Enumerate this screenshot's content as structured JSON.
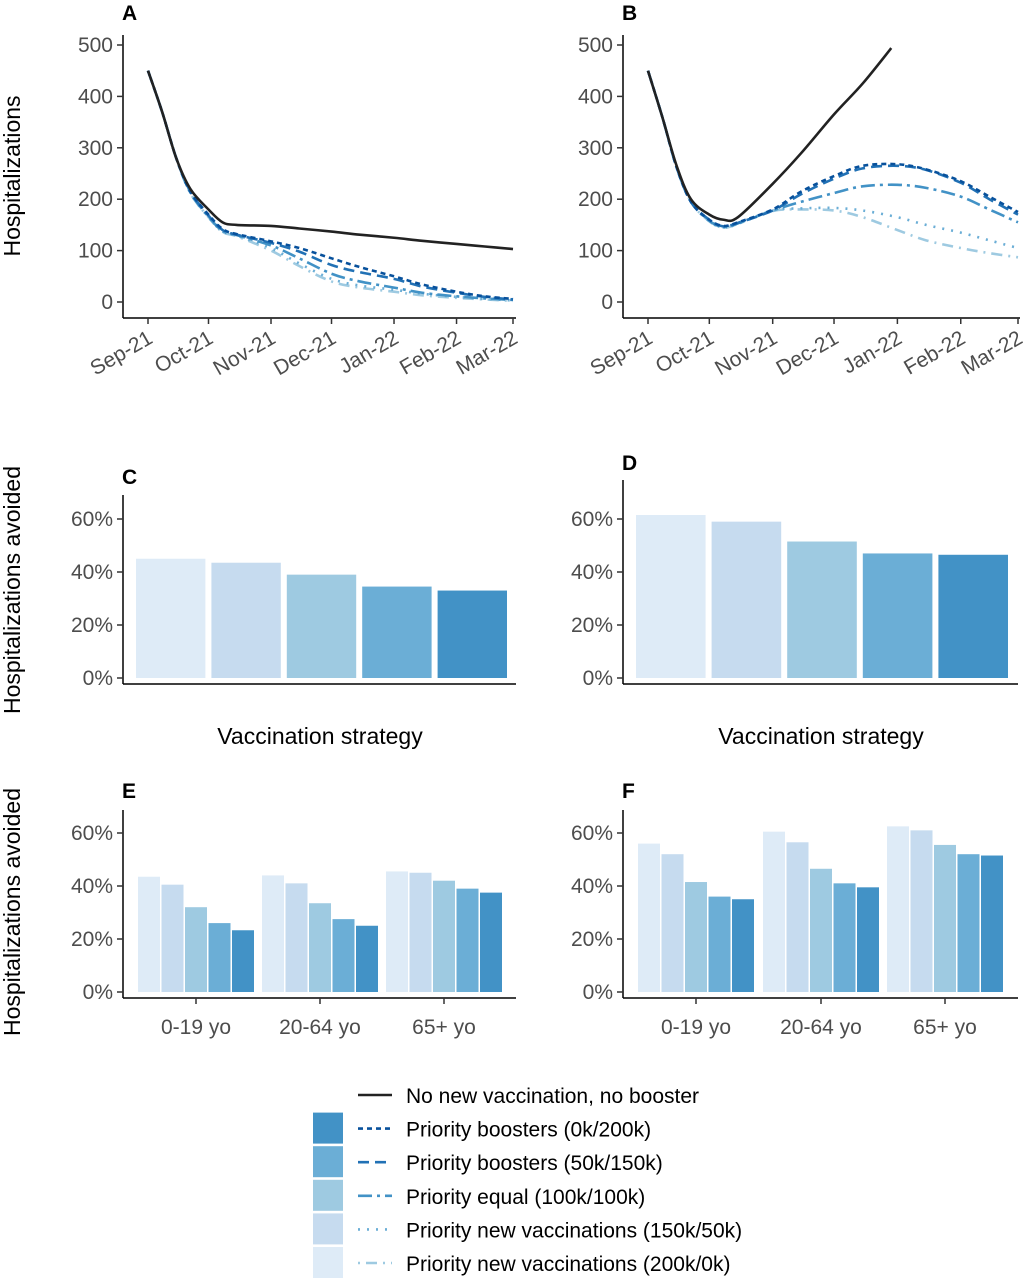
{
  "legend": {
    "items": [
      {
        "label": "No new vaccination, no booster",
        "line_color": "#222222",
        "dash": "solid",
        "fill": null
      },
      {
        "label": "Priority boosters (0k/200k)",
        "line_color": "#08519c",
        "dash": "dotted-dash",
        "fill": "#4292c6"
      },
      {
        "label": "Priority boosters (50k/150k)",
        "line_color": "#2171b5",
        "dash": "dashed",
        "fill": "#6baed6"
      },
      {
        "label": "Priority equal (100k/100k)",
        "line_color": "#4292c6",
        "dash": "longdash-dot",
        "fill": "#9ecae1"
      },
      {
        "label": "Priority new vaccinations (150k/50k)",
        "line_color": "#6baed6",
        "dash": "dotted",
        "fill": "#c6dbef"
      },
      {
        "label": "Priority new vaccinations (200k/0k)",
        "line_color": "#9ecae1",
        "dash": "dot-dash",
        "fill": "#deebf7"
      }
    ]
  },
  "chart_data": [
    {
      "panel": "A",
      "type": "line",
      "ylabel": "Hospitalizations",
      "xlabel": "",
      "ylim": [
        0,
        500
      ],
      "yticks": [
        "0",
        "100",
        "200",
        "300",
        "400",
        "500"
      ],
      "xticks": [
        "Sep-21",
        "Oct-21",
        "Nov-21",
        "Dec-21",
        "Jan-22",
        "Feb-22",
        "Mar-22"
      ],
      "xtick_dates": [
        "2021-09-01",
        "2021-10-01",
        "2021-11-01",
        "2021-12-01",
        "2022-01-01",
        "2022-02-01",
        "2022-03-01"
      ],
      "grid": false,
      "series": [
        {
          "name": "No new vaccination, no booster",
          "x": [
            "2021-09-01",
            "2021-09-08",
            "2021-09-15",
            "2021-09-22",
            "2021-10-01",
            "2021-10-08",
            "2021-10-15",
            "2021-11-01",
            "2021-11-15",
            "2021-12-01",
            "2021-12-15",
            "2022-01-01",
            "2022-01-15",
            "2022-02-01",
            "2022-02-15",
            "2022-03-01"
          ],
          "values": [
            450,
            370,
            280,
            220,
            180,
            155,
            150,
            148,
            143,
            137,
            131,
            125,
            119,
            113,
            108,
            103
          ]
        },
        {
          "name": "Priority boosters (0k/200k)",
          "x": [
            "2021-09-01",
            "2021-09-08",
            "2021-09-15",
            "2021-09-22",
            "2021-10-01",
            "2021-10-08",
            "2021-10-15",
            "2021-11-01",
            "2021-11-15",
            "2021-12-01",
            "2021-12-15",
            "2022-01-01",
            "2022-01-15",
            "2022-02-01",
            "2022-02-15",
            "2022-03-01"
          ],
          "values": [
            450,
            370,
            280,
            215,
            170,
            142,
            132,
            118,
            105,
            85,
            68,
            50,
            34,
            20,
            11,
            6
          ]
        },
        {
          "name": "Priority boosters (50k/150k)",
          "x": [
            "2021-09-01",
            "2021-09-08",
            "2021-09-15",
            "2021-09-22",
            "2021-10-01",
            "2021-10-08",
            "2021-10-15",
            "2021-11-01",
            "2021-11-15",
            "2021-12-01",
            "2021-12-15",
            "2022-01-01",
            "2022-01-15",
            "2022-02-01",
            "2022-02-15",
            "2022-03-01"
          ],
          "values": [
            450,
            370,
            280,
            215,
            168,
            140,
            131,
            115,
            98,
            72,
            58,
            45,
            30,
            18,
            10,
            5
          ]
        },
        {
          "name": "Priority equal (100k/100k)",
          "x": [
            "2021-09-01",
            "2021-09-08",
            "2021-09-15",
            "2021-09-22",
            "2021-10-01",
            "2021-10-08",
            "2021-10-15",
            "2021-11-01",
            "2021-11-15",
            "2021-12-01",
            "2021-12-15",
            "2022-01-01",
            "2022-01-15",
            "2022-02-01",
            "2022-02-15",
            "2022-03-01"
          ],
          "values": [
            450,
            370,
            280,
            213,
            166,
            138,
            130,
            110,
            85,
            55,
            40,
            28,
            18,
            11,
            7,
            4
          ]
        },
        {
          "name": "Priority new vaccinations (150k/50k)",
          "x": [
            "2021-09-01",
            "2021-09-08",
            "2021-09-15",
            "2021-09-22",
            "2021-10-01",
            "2021-10-08",
            "2021-10-15",
            "2021-11-01",
            "2021-11-15",
            "2021-12-01",
            "2021-12-15",
            "2022-01-01",
            "2022-01-15",
            "2022-02-01",
            "2022-02-15",
            "2022-03-01"
          ],
          "values": [
            450,
            370,
            280,
            212,
            165,
            137,
            129,
            105,
            75,
            45,
            32,
            24,
            16,
            10,
            6,
            3
          ]
        },
        {
          "name": "Priority new vaccinations (200k/0k)",
          "x": [
            "2021-09-01",
            "2021-09-08",
            "2021-09-15",
            "2021-09-22",
            "2021-10-01",
            "2021-10-08",
            "2021-10-15",
            "2021-11-01",
            "2021-11-15",
            "2021-12-01",
            "2021-12-15",
            "2022-01-01",
            "2022-01-15",
            "2022-02-01",
            "2022-02-15",
            "2022-03-01"
          ],
          "values": [
            450,
            370,
            280,
            212,
            165,
            136,
            128,
            100,
            70,
            40,
            28,
            20,
            13,
            8,
            5,
            2
          ]
        }
      ]
    },
    {
      "panel": "B",
      "type": "line",
      "ylabel": "",
      "xlabel": "",
      "ylim": [
        0,
        500
      ],
      "yticks": [
        "0",
        "100",
        "200",
        "300",
        "400",
        "500"
      ],
      "xticks": [
        "Sep-21",
        "Oct-21",
        "Nov-21",
        "Dec-21",
        "Jan-22",
        "Feb-22",
        "Mar-22"
      ],
      "xtick_dates": [
        "2021-09-01",
        "2021-10-01",
        "2021-11-01",
        "2021-12-01",
        "2022-01-01",
        "2022-02-01",
        "2022-03-01"
      ],
      "grid": false,
      "series": [
        {
          "name": "No new vaccination, no booster",
          "x": [
            "2021-09-01",
            "2021-09-08",
            "2021-09-15",
            "2021-09-22",
            "2021-10-01",
            "2021-10-08",
            "2021-10-15",
            "2021-11-01",
            "2021-11-15",
            "2021-12-01",
            "2021-12-15",
            "2021-12-29"
          ],
          "values": [
            450,
            360,
            265,
            200,
            170,
            160,
            165,
            230,
            290,
            365,
            425,
            494
          ]
        },
        {
          "name": "Priority boosters (0k/200k)",
          "x": [
            "2021-09-01",
            "2021-09-08",
            "2021-09-15",
            "2021-09-22",
            "2021-10-01",
            "2021-10-08",
            "2021-10-15",
            "2021-11-01",
            "2021-11-15",
            "2021-12-01",
            "2021-12-15",
            "2022-01-01",
            "2022-01-15",
            "2022-02-01",
            "2022-02-15",
            "2022-03-01"
          ],
          "values": [
            450,
            360,
            262,
            195,
            160,
            148,
            155,
            180,
            215,
            245,
            265,
            268,
            258,
            235,
            205,
            175
          ]
        },
        {
          "name": "Priority boosters (50k/150k)",
          "x": [
            "2021-09-01",
            "2021-09-08",
            "2021-09-15",
            "2021-09-22",
            "2021-10-01",
            "2021-10-08",
            "2021-10-15",
            "2021-11-01",
            "2021-11-15",
            "2021-12-01",
            "2021-12-15",
            "2022-01-01",
            "2022-01-15",
            "2022-02-01",
            "2022-02-15",
            "2022-03-01"
          ],
          "values": [
            450,
            360,
            262,
            195,
            160,
            147,
            154,
            178,
            210,
            240,
            260,
            265,
            257,
            232,
            200,
            170
          ]
        },
        {
          "name": "Priority equal (100k/100k)",
          "x": [
            "2021-09-01",
            "2021-09-08",
            "2021-09-15",
            "2021-09-22",
            "2021-10-01",
            "2021-10-08",
            "2021-10-15",
            "2021-11-01",
            "2021-11-15",
            "2021-12-01",
            "2021-12-15",
            "2022-01-01",
            "2022-01-15",
            "2022-02-01",
            "2022-02-15",
            "2022-03-01"
          ],
          "values": [
            450,
            360,
            262,
            195,
            158,
            146,
            153,
            178,
            195,
            212,
            225,
            228,
            222,
            205,
            180,
            155
          ]
        },
        {
          "name": "Priority new vaccinations (150k/50k)",
          "x": [
            "2021-09-01",
            "2021-09-08",
            "2021-09-15",
            "2021-09-22",
            "2021-10-01",
            "2021-10-08",
            "2021-10-15",
            "2021-11-01",
            "2021-11-15",
            "2021-12-01",
            "2021-12-15",
            "2022-01-01",
            "2022-01-15",
            "2022-02-01",
            "2022-02-15",
            "2022-03-01"
          ],
          "values": [
            450,
            360,
            262,
            195,
            157,
            145,
            152,
            178,
            182,
            183,
            178,
            165,
            150,
            135,
            120,
            105
          ]
        },
        {
          "name": "Priority new vaccinations (200k/0k)",
          "x": [
            "2021-09-01",
            "2021-09-08",
            "2021-09-15",
            "2021-09-22",
            "2021-10-01",
            "2021-10-08",
            "2021-10-15",
            "2021-11-01",
            "2021-11-15",
            "2021-12-01",
            "2021-12-15",
            "2022-01-01",
            "2022-01-15",
            "2022-02-01",
            "2022-02-15",
            "2022-03-01"
          ],
          "values": [
            450,
            360,
            262,
            195,
            157,
            145,
            152,
            177,
            180,
            178,
            165,
            140,
            120,
            105,
            95,
            87
          ]
        }
      ]
    },
    {
      "panel": "C",
      "type": "bar",
      "ylabel": "Hospitalizations avoided",
      "xlabel": "Vaccination strategy",
      "ylim": [
        0,
        65
      ],
      "yticks": [
        "0%",
        "20%",
        "40%",
        "60%"
      ],
      "ytick_values": [
        0,
        20,
        40,
        60
      ],
      "categories": [
        "Priority new vaccinations (200k/0k)",
        "Priority new vaccinations (150k/50k)",
        "Priority equal (100k/100k)",
        "Priority boosters (50k/150k)",
        "Priority boosters (0k/200k)"
      ],
      "values": [
        45,
        43.5,
        39,
        34.5,
        33
      ]
    },
    {
      "panel": "D",
      "type": "bar",
      "ylabel": "",
      "xlabel": "Vaccination strategy",
      "ylim": [
        0,
        65
      ],
      "yticks": [
        "0%",
        "20%",
        "40%",
        "60%"
      ],
      "ytick_values": [
        0,
        20,
        40,
        60
      ],
      "categories": [
        "Priority new vaccinations (200k/0k)",
        "Priority new vaccinations (150k/50k)",
        "Priority equal (100k/100k)",
        "Priority boosters (50k/150k)",
        "Priority boosters (0k/200k)"
      ],
      "values": [
        61.5,
        59,
        51.5,
        47,
        46.5
      ]
    },
    {
      "panel": "E",
      "type": "bar",
      "ylabel": "Hospitalizations avoided",
      "xlabel": "",
      "ylim": [
        0,
        65
      ],
      "yticks": [
        "0%",
        "20%",
        "40%",
        "60%"
      ],
      "ytick_values": [
        0,
        20,
        40,
        60
      ],
      "categories": [
        "0-19 yo",
        "20-64 yo",
        "65+ yo"
      ],
      "series": [
        {
          "name": "Priority new vaccinations (200k/0k)",
          "values": [
            43.5,
            44,
            45.5
          ]
        },
        {
          "name": "Priority new vaccinations (150k/50k)",
          "values": [
            40.5,
            41,
            45
          ]
        },
        {
          "name": "Priority equal (100k/100k)",
          "values": [
            32,
            33.5,
            42
          ]
        },
        {
          "name": "Priority boosters (50k/150k)",
          "values": [
            26,
            27.5,
            39
          ]
        },
        {
          "name": "Priority boosters (0k/200k)",
          "values": [
            23.3,
            25,
            37.5
          ]
        }
      ]
    },
    {
      "panel": "F",
      "type": "bar",
      "ylabel": "",
      "xlabel": "",
      "ylim": [
        0,
        65
      ],
      "yticks": [
        "0%",
        "20%",
        "40%",
        "60%"
      ],
      "ytick_values": [
        0,
        20,
        40,
        60
      ],
      "categories": [
        "0-19 yo",
        "20-64 yo",
        "65+ yo"
      ],
      "series": [
        {
          "name": "Priority new vaccinations (200k/0k)",
          "values": [
            56,
            60.5,
            62.5
          ]
        },
        {
          "name": "Priority new vaccinations (150k/50k)",
          "values": [
            52,
            56.5,
            61
          ]
        },
        {
          "name": "Priority equal (100k/100k)",
          "values": [
            41.5,
            46.5,
            55.5
          ]
        },
        {
          "name": "Priority boosters (50k/150k)",
          "values": [
            36,
            41,
            52
          ]
        },
        {
          "name": "Priority boosters (0k/200k)",
          "values": [
            35,
            39.5,
            51.5
          ]
        }
      ]
    }
  ]
}
